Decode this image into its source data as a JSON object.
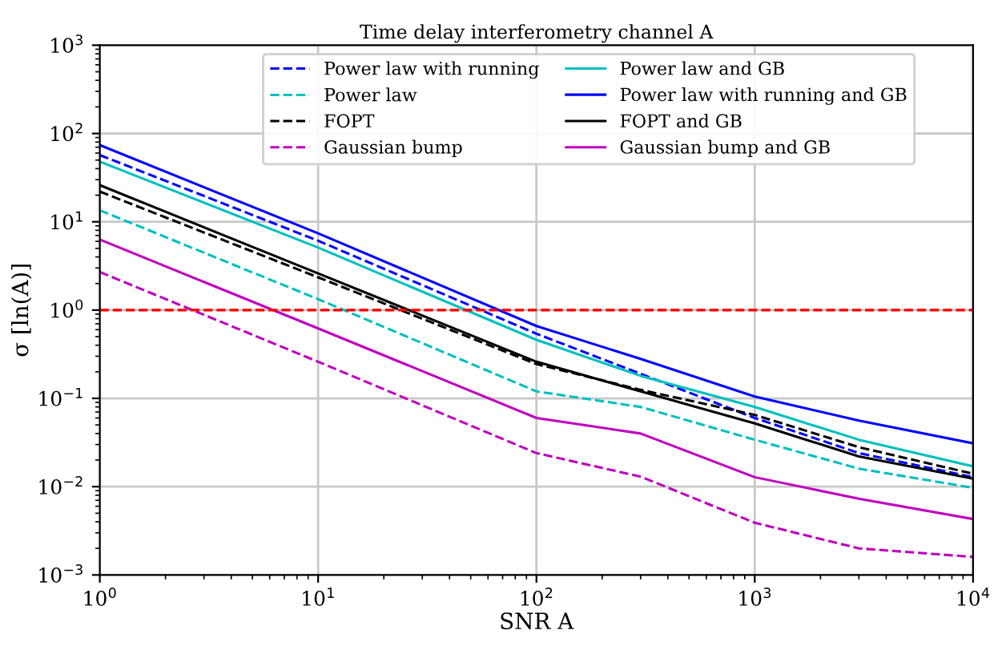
{
  "chart_data": {
    "type": "line",
    "title": "Time delay interferometry channel A",
    "xlabel": "SNR A",
    "ylabel": "σ [ln(A)]",
    "log": "xy",
    "grid": true,
    "legend": "top",
    "x": [
      1,
      10,
      100,
      300,
      1000,
      3000,
      10000
    ],
    "xlim": [
      1,
      10000
    ],
    "xticks": [
      {
        "value": 1,
        "label": "10$^{0}$"
      },
      {
        "value": 10,
        "label": "10$^{1}$"
      },
      {
        "value": 100,
        "label": "10$^{2}$"
      },
      {
        "value": 1000,
        "label": "10$^{3}$"
      },
      {
        "value": 10000,
        "label": "10$^{4}$"
      }
    ],
    "ylim": [
      0.001,
      1000
    ],
    "yticks": [
      {
        "value": 0.001,
        "label": "10$^{−3}$"
      },
      {
        "value": 0.01,
        "label": "10$^{−2}$"
      },
      {
        "value": 0.1,
        "label": "10$^{−1}$"
      },
      {
        "value": 1,
        "label": "10$^{0}$"
      },
      {
        "value": 10,
        "label": "10$^{1}$"
      },
      {
        "value": 100,
        "label": "10$^{2}$"
      },
      {
        "value": 1000,
        "label": "10$^{3}$"
      }
    ],
    "ref_lines": [
      {
        "axis": "y",
        "value": 1,
        "color": "#ff0000",
        "line_style": "dashed"
      }
    ],
    "series": [
      {
        "name": "Power law with running",
        "color": "#0000ff",
        "line_style": "dashed",
        "values": [
          57,
          6.1,
          0.54,
          0.19,
          0.06,
          0.024,
          0.0128
        ]
      },
      {
        "name": "Power law",
        "color": "#00bfbf",
        "line_style": "dashed",
        "values": [
          13.5,
          1.33,
          0.12,
          0.08,
          0.034,
          0.016,
          0.0097
        ]
      },
      {
        "name": "FOPT",
        "color": "#000000",
        "line_style": "dashed",
        "values": [
          22,
          2.35,
          0.245,
          0.125,
          0.065,
          0.028,
          0.014
        ]
      },
      {
        "name": "Gaussian bump",
        "color": "#bf00bf",
        "line_style": "dashed",
        "values": [
          2.7,
          0.26,
          0.024,
          0.013,
          0.0039,
          0.002,
          0.0016
        ]
      },
      {
        "name": "Power law and GB",
        "color": "#00bfbf",
        "line_style": "solid",
        "values": [
          48,
          5.1,
          0.46,
          0.18,
          0.08,
          0.034,
          0.017
        ]
      },
      {
        "name": "Power law with running and GB",
        "color": "#0000ff",
        "line_style": "solid",
        "values": [
          74,
          7.4,
          0.66,
          0.28,
          0.105,
          0.056,
          0.031
        ]
      },
      {
        "name": "FOPT and GB",
        "color": "#000000",
        "line_style": "solid",
        "values": [
          26,
          2.6,
          0.26,
          0.12,
          0.052,
          0.022,
          0.0123
        ]
      },
      {
        "name": "Gaussian bump and GB",
        "color": "#bf00bf",
        "line_style": "solid",
        "values": [
          6.3,
          0.62,
          0.06,
          0.04,
          0.0128,
          0.0073,
          0.0043
        ]
      }
    ]
  }
}
